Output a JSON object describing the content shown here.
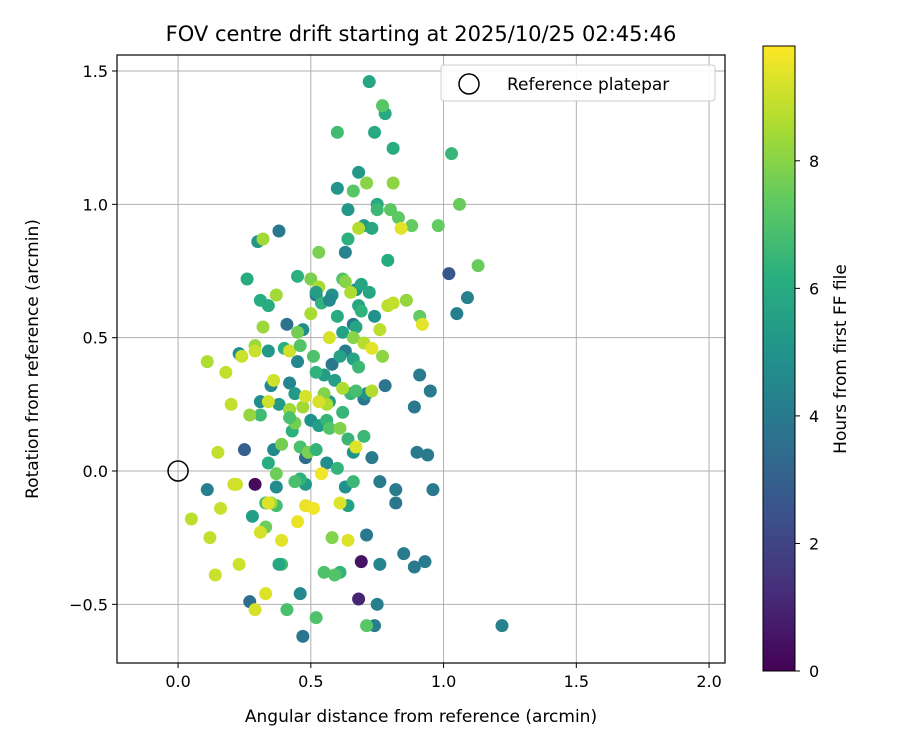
{
  "chart_data": {
    "type": "scatter",
    "title": "FOV centre drift starting at 2025/10/25 02:45:46",
    "xlabel": "Angular distance from reference (arcmin)",
    "ylabel": "Rotation from reference (arcmin)",
    "xlim": [
      -0.23,
      2.06
    ],
    "ylim": [
      -0.72,
      1.56
    ],
    "xticks": [
      0.0,
      0.5,
      1.0,
      1.5,
      2.0
    ],
    "xtick_labels": [
      "0.0",
      "0.5",
      "1.0",
      "1.5",
      "2.0"
    ],
    "yticks": [
      -0.5,
      0.0,
      0.5,
      1.0,
      1.5
    ],
    "ytick_labels": [
      "−0.5",
      "0.0",
      "0.5",
      "1.0",
      "1.5"
    ],
    "grid": true,
    "legend": {
      "position": "top-right",
      "entries": [
        "Reference platepar"
      ]
    },
    "reference_point": {
      "x": 0.0,
      "y": 0.0,
      "label": "Reference platepar"
    },
    "colorbar": {
      "label": "Hours from first FF file",
      "range": [
        0,
        9.8
      ],
      "ticks": [
        0,
        2,
        4,
        6,
        8
      ],
      "tick_labels": [
        "0",
        "2",
        "4",
        "6",
        "8"
      ],
      "colormap": "viridis"
    },
    "points": [
      [
        0.29,
        -0.05,
        0.3
      ],
      [
        0.69,
        -0.34,
        0.5
      ],
      [
        0.68,
        -0.48,
        1.0
      ],
      [
        1.02,
        0.74,
        2.6
      ],
      [
        0.25,
        0.08,
        3.0
      ],
      [
        0.27,
        -0.49,
        3.6
      ],
      [
        0.47,
        -0.62,
        3.8
      ],
      [
        0.38,
        0.9,
        3.9
      ],
      [
        0.41,
        0.55,
        3.7
      ],
      [
        0.48,
        0.05,
        3.5
      ],
      [
        0.52,
        0.66,
        3.7
      ],
      [
        0.58,
        0.4,
        3.9
      ],
      [
        0.63,
        0.45,
        4.0
      ],
      [
        0.66,
        0.55,
        3.8
      ],
      [
        0.7,
        0.27,
        3.9
      ],
      [
        0.71,
        -0.24,
        3.9
      ],
      [
        0.73,
        0.05,
        4.0
      ],
      [
        0.76,
        -0.04,
        4.0
      ],
      [
        0.78,
        0.32,
        3.8
      ],
      [
        0.82,
        -0.07,
        4.0
      ],
      [
        0.82,
        -0.12,
        3.9
      ],
      [
        0.85,
        -0.31,
        4.0
      ],
      [
        0.89,
        0.24,
        3.9
      ],
      [
        0.89,
        -0.36,
        4.0
      ],
      [
        0.9,
        0.07,
        4.0
      ],
      [
        0.91,
        0.36,
        4.1
      ],
      [
        0.93,
        -0.34,
        4.0
      ],
      [
        0.94,
        0.06,
        4.0
      ],
      [
        0.95,
        0.3,
        4.0
      ],
      [
        0.96,
        -0.07,
        4.0
      ],
      [
        1.05,
        0.59,
        4.2
      ],
      [
        1.09,
        0.65,
        4.3
      ],
      [
        1.22,
        -0.58,
        4.3
      ],
      [
        0.11,
        -0.07,
        4.2
      ],
      [
        0.74,
        -0.58,
        4.2
      ],
      [
        0.75,
        -0.5,
        4.2
      ],
      [
        0.76,
        -0.35,
        4.4
      ],
      [
        0.42,
        0.33,
        4.4
      ],
      [
        0.45,
        0.41,
        4.5
      ],
      [
        0.35,
        0.32,
        4.5
      ],
      [
        0.36,
        0.08,
        4.6
      ],
      [
        0.42,
        0.23,
        4.6
      ],
      [
        0.46,
        -0.46,
        4.6
      ],
      [
        0.37,
        -0.06,
        4.7
      ],
      [
        0.56,
        0.03,
        4.7
      ],
      [
        0.31,
        0.26,
        4.7
      ],
      [
        0.23,
        0.44,
        4.8
      ],
      [
        0.47,
        0.53,
        4.8
      ],
      [
        0.5,
        0.19,
        4.9
      ],
      [
        0.58,
        0.66,
        4.9
      ],
      [
        0.63,
        -0.06,
        4.9
      ],
      [
        0.66,
        0.07,
        5.0
      ],
      [
        0.67,
        0.68,
        5.0
      ],
      [
        0.71,
        0.29,
        5.0
      ],
      [
        0.74,
        0.58,
        5.0
      ],
      [
        0.6,
        1.06,
        5.1
      ],
      [
        0.64,
        0.98,
        5.2
      ],
      [
        0.68,
        1.12,
        5.2
      ],
      [
        0.7,
        0.92,
        5.3
      ],
      [
        0.3,
        0.86,
        5.2
      ],
      [
        0.34,
        0.45,
        5.2
      ],
      [
        0.38,
        0.25,
        5.3
      ],
      [
        0.44,
        0.29,
        5.3
      ],
      [
        0.48,
        -0.05,
        5.3
      ],
      [
        0.53,
        0.17,
        5.4
      ],
      [
        0.55,
        0.36,
        5.4
      ],
      [
        0.57,
        0.26,
        5.5
      ],
      [
        0.59,
        0.34,
        5.5
      ],
      [
        0.61,
        0.43,
        5.6
      ],
      [
        0.62,
        0.52,
        5.6
      ],
      [
        0.64,
        -0.13,
        5.6
      ],
      [
        0.66,
        0.42,
        5.7
      ],
      [
        0.67,
        0.54,
        5.7
      ],
      [
        0.68,
        0.62,
        5.7
      ],
      [
        0.69,
        0.7,
        5.8
      ],
      [
        0.72,
        0.67,
        5.8
      ],
      [
        0.73,
        0.91,
        5.8
      ],
      [
        0.74,
        1.27,
        5.9
      ],
      [
        0.75,
        1.0,
        5.9
      ],
      [
        0.72,
        1.46,
        5.7
      ],
      [
        0.78,
        1.34,
        5.9
      ],
      [
        0.79,
        0.79,
        6.0
      ],
      [
        0.81,
        1.21,
        6.0
      ],
      [
        0.26,
        0.72,
        6.0
      ],
      [
        0.31,
        0.64,
        6.1
      ],
      [
        0.34,
        0.62,
        6.1
      ],
      [
        0.4,
        0.46,
        6.2
      ],
      [
        0.43,
        0.15,
        6.2
      ],
      [
        0.45,
        0.73,
        6.2
      ],
      [
        0.46,
        -0.03,
        6.3
      ],
      [
        0.52,
        0.37,
        6.3
      ],
      [
        0.54,
        0.63,
        6.3
      ],
      [
        0.56,
        0.19,
        6.4
      ],
      [
        0.6,
        0.01,
        6.4
      ],
      [
        0.61,
        -0.38,
        6.4
      ],
      [
        0.62,
        0.22,
        6.5
      ],
      [
        0.64,
        0.12,
        6.5
      ],
      [
        0.65,
        0.29,
        6.5
      ],
      [
        0.66,
        -0.04,
        6.6
      ],
      [
        0.68,
        0.39,
        6.6
      ],
      [
        0.7,
        0.13,
        6.6
      ],
      [
        0.6,
        1.27,
        6.7
      ],
      [
        1.03,
        1.19,
        6.5
      ],
      [
        0.31,
        0.21,
        6.7
      ],
      [
        0.33,
        -0.12,
        6.8
      ],
      [
        0.37,
        -0.13,
        6.8
      ],
      [
        0.39,
        -0.35,
        6.8
      ],
      [
        0.41,
        -0.52,
        6.9
      ],
      [
        0.44,
        -0.04,
        6.9
      ],
      [
        0.46,
        0.09,
        6.9
      ],
      [
        0.51,
        0.43,
        7.0
      ],
      [
        0.52,
        -0.55,
        7.0
      ],
      [
        0.55,
        -0.38,
        7.0
      ],
      [
        0.57,
        0.16,
        7.1
      ],
      [
        0.59,
        -0.39,
        7.1
      ],
      [
        0.62,
        0.72,
        7.1
      ],
      [
        0.66,
        1.05,
        7.2
      ],
      [
        0.71,
        -0.58,
        7.2
      ],
      [
        0.77,
        1.37,
        7.2
      ],
      [
        0.8,
        0.98,
        7.3
      ],
      [
        0.83,
        0.95,
        7.3
      ],
      [
        0.88,
        0.92,
        7.4
      ],
      [
        0.91,
        0.58,
        7.4
      ],
      [
        0.98,
        0.92,
        7.4
      ],
      [
        1.06,
        1.0,
        7.5
      ],
      [
        1.13,
        0.77,
        7.5
      ],
      [
        0.33,
        -0.21,
        7.6
      ],
      [
        0.37,
        -0.01,
        7.6
      ],
      [
        0.39,
        0.1,
        7.7
      ],
      [
        0.44,
        0.18,
        7.7
      ],
      [
        0.45,
        0.52,
        7.7
      ],
      [
        0.49,
        0.07,
        7.8
      ],
      [
        0.5,
        0.72,
        7.8
      ],
      [
        0.53,
        0.82,
        7.8
      ],
      [
        0.55,
        0.29,
        7.9
      ],
      [
        0.58,
        -0.25,
        7.9
      ],
      [
        0.61,
        0.16,
        7.9
      ],
      [
        0.63,
        0.71,
        8.0
      ],
      [
        0.66,
        0.5,
        8.0
      ],
      [
        0.71,
        1.08,
        8.0
      ],
      [
        0.77,
        0.43,
        8.1
      ],
      [
        0.81,
        1.08,
        8.1
      ],
      [
        0.86,
        0.64,
        8.2
      ],
      [
        0.27,
        0.21,
        8.2
      ],
      [
        0.29,
        0.47,
        8.3
      ],
      [
        0.32,
        0.54,
        8.3
      ],
      [
        0.35,
        -0.12,
        8.3
      ],
      [
        0.37,
        0.66,
        8.4
      ],
      [
        0.42,
        0.23,
        8.4
      ],
      [
        0.47,
        0.24,
        8.4
      ],
      [
        0.5,
        0.59,
        8.5
      ],
      [
        0.53,
        0.69,
        8.5
      ],
      [
        0.56,
        0.25,
        8.6
      ],
      [
        0.62,
        0.31,
        8.6
      ],
      [
        0.65,
        0.67,
        8.6
      ],
      [
        0.68,
        0.91,
        8.7
      ],
      [
        0.7,
        0.48,
        8.7
      ],
      [
        0.73,
        0.3,
        8.7
      ],
      [
        0.76,
        0.53,
        8.8
      ],
      [
        0.79,
        0.62,
        8.8
      ],
      [
        0.81,
        0.63,
        8.9
      ],
      [
        0.18,
        0.37,
        8.9
      ],
      [
        0.2,
        0.25,
        8.9
      ],
      [
        0.22,
        -0.05,
        9.0
      ],
      [
        0.24,
        0.43,
        9.0
      ],
      [
        0.29,
        0.45,
        9.0
      ],
      [
        0.34,
        0.26,
        9.1
      ],
      [
        0.36,
        0.34,
        9.1
      ],
      [
        0.42,
        0.45,
        9.1
      ],
      [
        0.48,
        0.28,
        9.2
      ],
      [
        0.53,
        0.26,
        9.2
      ],
      [
        0.57,
        0.5,
        9.2
      ],
      [
        0.61,
        -0.12,
        9.3
      ],
      [
        0.64,
        -0.26,
        9.3
      ],
      [
        0.67,
        0.09,
        9.3
      ],
      [
        0.73,
        0.46,
        9.4
      ],
      [
        0.84,
        0.91,
        9.4
      ],
      [
        0.92,
        0.55,
        9.4
      ],
      [
        0.11,
        0.41,
        8.6
      ],
      [
        0.05,
        -0.18,
        8.8
      ],
      [
        0.12,
        -0.25,
        8.9
      ],
      [
        0.14,
        -0.39,
        9.0
      ],
      [
        0.16,
        -0.14,
        9.0
      ],
      [
        0.21,
        -0.05,
        9.1
      ],
      [
        0.23,
        -0.35,
        9.1
      ],
      [
        0.29,
        -0.52,
        9.2
      ],
      [
        0.31,
        -0.23,
        9.2
      ],
      [
        0.33,
        -0.46,
        9.3
      ],
      [
        0.34,
        -0.12,
        9.3
      ],
      [
        0.39,
        -0.26,
        9.4
      ],
      [
        0.45,
        -0.19,
        9.5
      ],
      [
        0.48,
        -0.13,
        9.5
      ],
      [
        0.51,
        -0.14,
        9.6
      ],
      [
        0.54,
        -0.01,
        9.6
      ],
      [
        0.15,
        0.07,
        8.9
      ],
      [
        0.32,
        0.87,
        8.4
      ],
      [
        0.42,
        0.2,
        6.9
      ],
      [
        0.46,
        0.47,
        7.1
      ],
      [
        0.52,
        0.08,
        6.4
      ],
      [
        0.6,
        0.58,
        6.0
      ],
      [
        0.64,
        0.87,
        6.2
      ],
      [
        0.67,
        0.3,
        6.8
      ],
      [
        0.69,
        0.6,
        6.3
      ],
      [
        0.75,
        0.98,
        6.6
      ],
      [
        0.52,
        0.67,
        5.4
      ],
      [
        0.57,
        0.64,
        4.6
      ],
      [
        0.63,
        0.82,
        4.4
      ],
      [
        0.28,
        -0.17,
        5.5
      ],
      [
        0.34,
        0.03,
        6.1
      ],
      [
        0.38,
        -0.35,
        5.8
      ]
    ]
  }
}
